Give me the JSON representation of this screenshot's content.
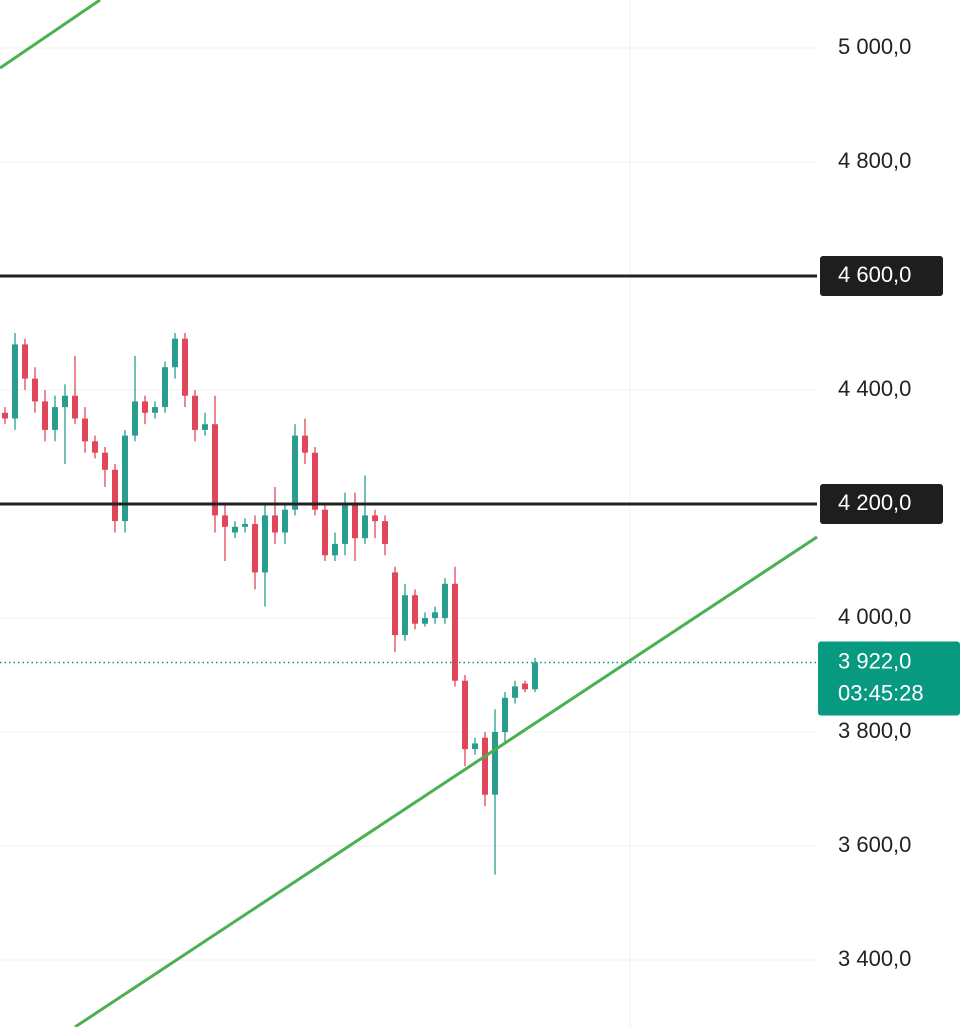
{
  "chart_data": {
    "type": "candlestick",
    "xlim": [
      -0.5,
      81.2
    ],
    "ylim": [
      3282.5,
      5084.2
    ],
    "yticks": [
      {
        "value": 5000,
        "label": "5 000,0"
      },
      {
        "value": 4800,
        "label": "4 800,0"
      },
      {
        "value": 4600,
        "label": "4 600,0"
      },
      {
        "value": 4400,
        "label": "4 400,0"
      },
      {
        "value": 4200,
        "label": "4 200,0"
      },
      {
        "value": 4000,
        "label": "4 000,0"
      },
      {
        "value": 3800,
        "label": "3 800,0"
      },
      {
        "value": 3600,
        "label": "3 600,0"
      },
      {
        "value": 3400,
        "label": "3 400,0"
      }
    ],
    "grid": true,
    "up_color": "#2a9d8f",
    "down_color": "#e0475b",
    "candles": {
      "open": [
        4360,
        4350,
        4480,
        4420,
        4380,
        4330,
        4370,
        4390,
        4350,
        4310,
        4290,
        4260,
        4170,
        4320,
        4380,
        4360,
        4370,
        4440,
        4490,
        4390,
        4330,
        4340,
        4180,
        4150,
        4160,
        4165,
        4080,
        4180,
        4150,
        4190,
        4320,
        4290,
        4190,
        4110,
        4130,
        4200,
        4140,
        4180,
        4170,
        4080,
        3970,
        4040,
        3990,
        4000,
        4000,
        4060,
        3890,
        3770,
        3790,
        3690,
        3800,
        3860,
        3885,
        3875
      ],
      "high": [
        4370,
        4500,
        4490,
        4440,
        4400,
        4390,
        4410,
        4460,
        4370,
        4320,
        4300,
        4270,
        4330,
        4460,
        4390,
        4380,
        4450,
        4500,
        4500,
        4400,
        4360,
        4390,
        4200,
        4170,
        4175,
        4180,
        4200,
        4230,
        4200,
        4340,
        4350,
        4300,
        4200,
        4150,
        4220,
        4220,
        4250,
        4190,
        4180,
        4090,
        4060,
        4050,
        4010,
        4020,
        4070,
        4090,
        3900,
        3790,
        3800,
        3840,
        3870,
        3890,
        3890,
        3930
      ],
      "low": [
        4340,
        4330,
        4400,
        4360,
        4310,
        4310,
        4270,
        4340,
        4290,
        4280,
        4230,
        4150,
        4150,
        4310,
        4340,
        4350,
        4360,
        4420,
        4370,
        4310,
        4320,
        4150,
        4100,
        4140,
        4150,
        4050,
        4020,
        4130,
        4130,
        4180,
        4270,
        4180,
        4100,
        4100,
        4110,
        4100,
        4130,
        4140,
        4110,
        3940,
        3960,
        3980,
        3985,
        3990,
        3990,
        3880,
        3740,
        3760,
        3670,
        3550,
        3780,
        3850,
        3870,
        3870
      ],
      "close": [
        4350,
        4480,
        4420,
        4380,
        4330,
        4370,
        4390,
        4350,
        4310,
        4290,
        4260,
        4170,
        4320,
        4380,
        4360,
        4370,
        4440,
        4490,
        4390,
        4330,
        4340,
        4180,
        4160,
        4160,
        4165,
        4080,
        4180,
        4150,
        4190,
        4320,
        4290,
        4190,
        4110,
        4130,
        4200,
        4140,
        4180,
        4170,
        4130,
        3970,
        4040,
        3990,
        4000,
        4010,
        4060,
        3890,
        3770,
        3780,
        3690,
        3800,
        3860,
        3880,
        3875,
        3922
      ]
    },
    "levels": [
      {
        "value": 4600,
        "label": "4 600,0"
      },
      {
        "value": 4200,
        "label": "4 200,0"
      }
    ],
    "trendlines": [
      {
        "color": "#4caf50",
        "points": [
          [
            7,
            3282.5
          ],
          [
            81.2,
            4142.1
          ]
        ]
      },
      {
        "color": "#4caf50",
        "points": [
          [
            -0.5,
            4964.9
          ],
          [
            9.5,
            5084.2
          ]
        ]
      }
    ],
    "current_price": {
      "value": 3922,
      "label": "3 922,0",
      "countdown": "03:45:28",
      "color": "#089981"
    }
  }
}
